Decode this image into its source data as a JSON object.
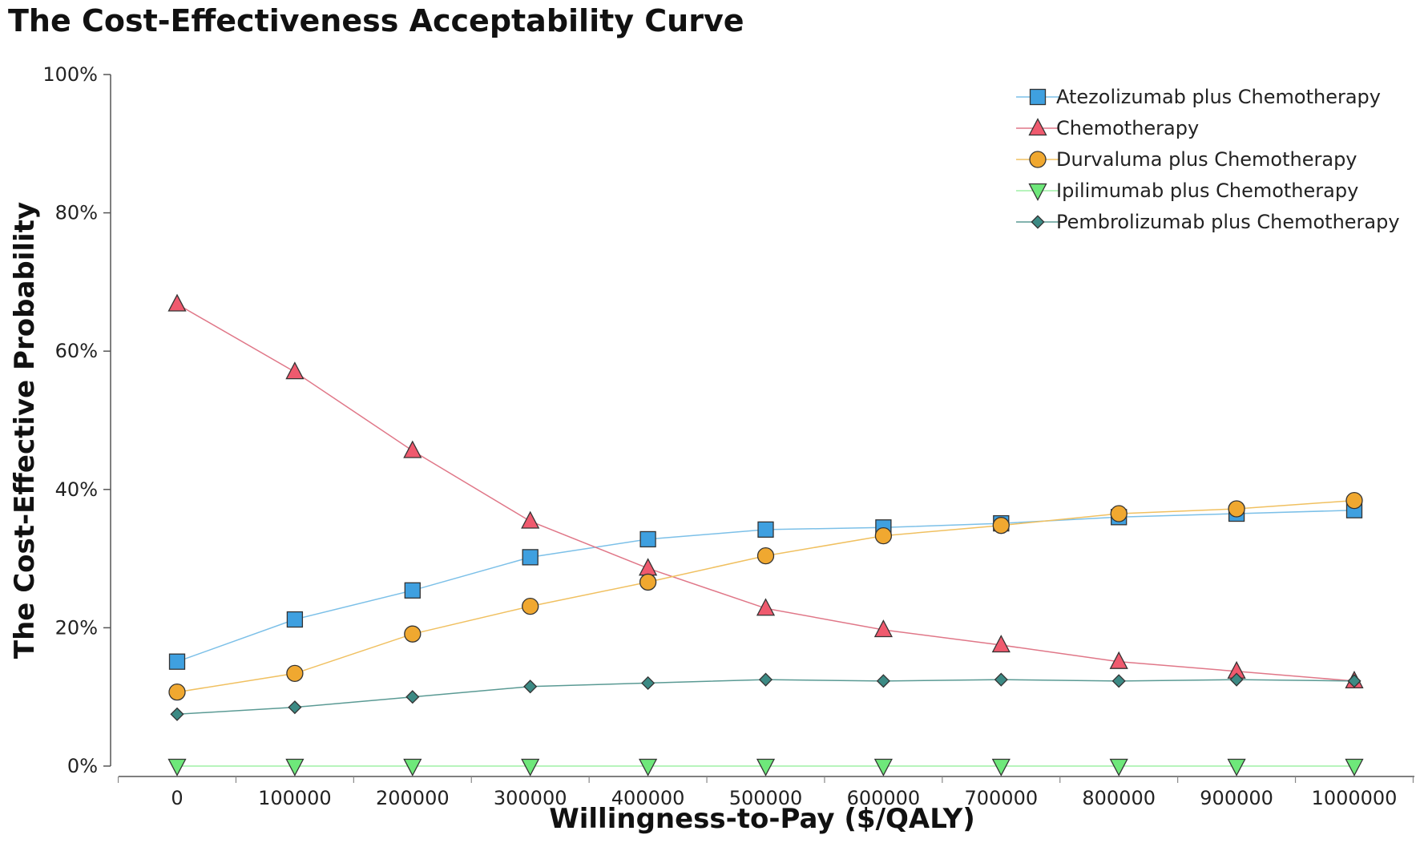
{
  "chart_data": {
    "type": "line",
    "title": "The Cost-Effectiveness Acceptability Curve",
    "xlabel": "Willingness-to-Pay ($/QALY)",
    "ylabel": "The Cost-Effective Probability",
    "x": [
      0,
      100000,
      200000,
      300000,
      400000,
      500000,
      600000,
      700000,
      800000,
      900000,
      1000000
    ],
    "x_tick_labels": [
      "0",
      "100000",
      "200000",
      "300000",
      "400000",
      "500000",
      "600000",
      "700000",
      "800000",
      "900000",
      "1000000"
    ],
    "ylim": [
      0,
      100
    ],
    "y_ticks": [
      0,
      20,
      40,
      60,
      80,
      100
    ],
    "y_tick_labels": [
      "0%",
      "20%",
      "40%",
      "60%",
      "80%",
      "100%"
    ],
    "legend_position": "top-right",
    "grid": false,
    "series": [
      {
        "name": "Atezolizumab plus Chemotherapy",
        "marker": "square",
        "color": "#3fa0e0",
        "line_color": "#7cc0e8",
        "values": [
          15.1,
          21.2,
          25.4,
          30.2,
          32.8,
          34.2,
          34.5,
          35.1,
          36.0,
          36.5,
          37.0
        ]
      },
      {
        "name": "Chemotherapy",
        "marker": "triangle-up",
        "color": "#ef5a6e",
        "line_color": "#e07788",
        "values": [
          66.8,
          57.0,
          45.6,
          35.4,
          28.6,
          22.8,
          19.7,
          17.5,
          15.1,
          13.7,
          12.3
        ]
      },
      {
        "name": "Durvaluma plus Chemotherapy",
        "marker": "circle",
        "color": "#f0a830",
        "line_color": "#f0c060",
        "values": [
          10.7,
          13.4,
          19.1,
          23.1,
          26.6,
          30.4,
          33.3,
          34.8,
          36.5,
          37.2,
          38.4
        ]
      },
      {
        "name": "Ipilimumab plus Chemotherapy",
        "marker": "triangle-down",
        "color": "#6ee87a",
        "line_color": "#9ff0a6",
        "values": [
          0,
          0,
          0,
          0,
          0,
          0,
          0,
          0,
          0,
          0,
          0
        ]
      },
      {
        "name": "Pembrolizumab plus Chemotherapy",
        "marker": "diamond",
        "color": "#3c8a84",
        "line_color": "#5a9a94",
        "values": [
          7.5,
          8.5,
          10.0,
          11.5,
          12.0,
          12.5,
          12.3,
          12.5,
          12.3,
          12.5,
          12.3
        ]
      }
    ]
  }
}
